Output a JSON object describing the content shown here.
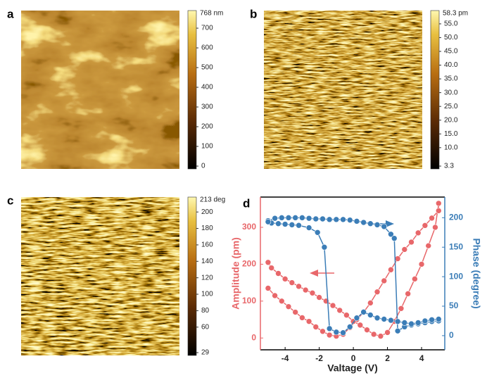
{
  "figures": [
    {
      "label": "a",
      "colorbar": {
        "title": "768 nm",
        "clim": [
          0,
          768
        ],
        "ticks": [
          0,
          100,
          200,
          300,
          400,
          500,
          600,
          700
        ]
      }
    },
    {
      "label": "b",
      "colorbar": {
        "title": "58.3 pm",
        "clim": [
          3.3,
          58.3
        ],
        "ticks": [
          3.3,
          {
            "value": 10,
            "label": "10.0"
          },
          {
            "value": 15,
            "label": "15.0"
          },
          {
            "value": 20,
            "label": "20.0"
          },
          {
            "value": 25,
            "label": "25.0"
          },
          {
            "value": 30,
            "label": "30.0"
          },
          {
            "value": 35,
            "label": "35.0"
          },
          {
            "value": 40,
            "label": "40.0"
          },
          {
            "value": 45,
            "label": "45.0"
          },
          {
            "value": 50,
            "label": "50.0"
          },
          {
            "value": 55,
            "label": "55.0"
          }
        ]
      }
    },
    {
      "label": "c",
      "colorbar": {
        "title": "213 deg",
        "clim": [
          29,
          213
        ],
        "ticks": [
          29,
          60,
          80,
          100,
          120,
          140,
          160,
          180,
          200
        ]
      }
    }
  ],
  "chart_data": {
    "type": "line",
    "label": "d",
    "xlabel": "Valtage (V)",
    "ylabel": "Amplitude (pm)",
    "y2label": "Phase (degree)",
    "xlim": [
      -5.45,
      5.36
    ],
    "xticks": [
      -4,
      -2,
      0,
      2,
      4
    ],
    "ylim": [
      -32,
      382
    ],
    "yticks": [
      0,
      100,
      200,
      300
    ],
    "y2lim": [
      -24,
      235
    ],
    "y2ticks": [
      0,
      50,
      100,
      150,
      200
    ],
    "series": [
      {
        "color": "#e8676a",
        "axis": "y",
        "x": [
          -5,
          -4.6,
          -4.2,
          -3.8,
          -3.4,
          -3,
          -2.6,
          -2.2,
          -1.8,
          -1.4,
          -1,
          -0.6,
          -0.2,
          0.2,
          0.6,
          1,
          1.4,
          1.8,
          2.2,
          2.6,
          3,
          3.4,
          3.8,
          4.2,
          4.6,
          5,
          5,
          4.8,
          4.4,
          4,
          3.6,
          3.2,
          2.8,
          2.4,
          2,
          1.6,
          1.2,
          0.8,
          0.4,
          0,
          -0.4,
          -0.8,
          -1.2,
          -1.6,
          -2,
          -2.4,
          -2.8,
          -3.2,
          -3.6,
          -4,
          -4.4,
          -4.8,
          -5
        ],
        "values": [
          135,
          115,
          100,
          85,
          70,
          55,
          45,
          30,
          18,
          8,
          5,
          10,
          28,
          50,
          70,
          95,
          125,
          155,
          185,
          215,
          240,
          260,
          285,
          305,
          325,
          345,
          365,
          300,
          250,
          200,
          160,
          120,
          80,
          45,
          15,
          5,
          10,
          22,
          35,
          45,
          62,
          75,
          88,
          100,
          110,
          122,
          130,
          140,
          150,
          160,
          175,
          190,
          205
        ]
      },
      {
        "color": "#3b7db7",
        "axis": "y2",
        "x": [
          -5,
          -4.6,
          -4.2,
          -3.8,
          -3.4,
          -3,
          -2.6,
          -2.2,
          -1.8,
          -1.4,
          -1,
          -0.6,
          -0.2,
          0.2,
          0.6,
          1,
          1.4,
          1.8,
          2.2,
          2.4,
          2.6,
          3,
          3.4,
          3.8,
          4.2,
          4.6,
          5,
          5,
          4.6,
          4.2,
          3.8,
          3.4,
          3,
          2.6,
          2.2,
          1.8,
          1.4,
          1,
          0.6,
          0.2,
          -0.2,
          -0.6,
          -1,
          -1.4,
          -1.7,
          -2.1,
          -2.6,
          -3.2,
          -3.6,
          -4,
          -4.4,
          -4.8,
          -5
        ],
        "values": [
          195,
          199,
          200,
          200,
          200,
          200,
          199,
          198,
          198,
          197,
          197,
          197,
          196,
          194,
          192,
          190,
          188,
          185,
          172,
          165,
          8,
          15,
          18,
          20,
          22,
          24,
          25,
          28,
          27,
          25,
          22,
          20,
          22,
          24,
          26,
          28,
          30,
          35,
          40,
          30,
          15,
          5,
          6,
          12,
          150,
          175,
          183,
          187,
          188,
          189,
          190,
          191,
          193
        ]
      }
    ]
  }
}
